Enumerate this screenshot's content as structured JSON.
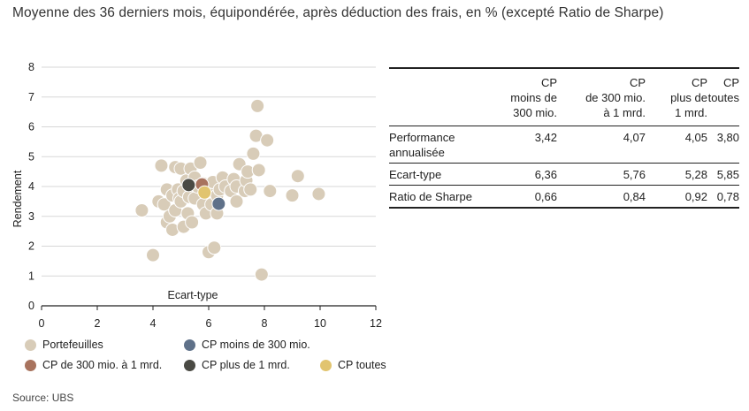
{
  "title": "Moyenne des 36 derniers mois, équipondérée, après déduction des frais, en % (excepté Ratio de Sharpe)",
  "source": "Source: UBS",
  "colors": {
    "portfolios": "#d8ccb8",
    "cp_small": "#5f7189",
    "cp_mid": "#a8735e",
    "cp_large": "#4a4a44",
    "cp_all": "#e1c46f",
    "grid": "#d7d7d7",
    "axis": "#222222"
  },
  "chart_data": {
    "type": "scatter",
    "xlabel": "Ecart-type",
    "ylabel": "Rendement",
    "xlim": [
      0,
      12
    ],
    "ylim": [
      0,
      8
    ],
    "xticks": [
      "0",
      "2",
      "4",
      "6",
      "8",
      "10",
      "12"
    ],
    "yticks": [
      "0",
      "1",
      "2",
      "3",
      "4",
      "5",
      "6",
      "7",
      "8"
    ],
    "grid": "horizontal",
    "legend_position": "bottom",
    "series": [
      {
        "name": "Portefeuilles",
        "color": "#d8ccb8",
        "points": [
          [
            3.6,
            3.2
          ],
          [
            4.0,
            1.7
          ],
          [
            4.2,
            3.5
          ],
          [
            4.3,
            4.7
          ],
          [
            4.4,
            3.4
          ],
          [
            4.5,
            3.9
          ],
          [
            4.5,
            2.8
          ],
          [
            4.6,
            3.0
          ],
          [
            4.7,
            3.7
          ],
          [
            4.7,
            2.55
          ],
          [
            4.8,
            4.65
          ],
          [
            4.8,
            3.2
          ],
          [
            4.9,
            3.9
          ],
          [
            4.95,
            3.6
          ],
          [
            5.0,
            4.6
          ],
          [
            5.0,
            3.5
          ],
          [
            5.1,
            2.65
          ],
          [
            5.1,
            3.85
          ],
          [
            5.2,
            4.2
          ],
          [
            5.25,
            3.1
          ],
          [
            5.3,
            3.65
          ],
          [
            5.35,
            4.6
          ],
          [
            5.4,
            2.8
          ],
          [
            5.5,
            4.3
          ],
          [
            5.5,
            3.6
          ],
          [
            5.6,
            4.0
          ],
          [
            5.7,
            4.8
          ],
          [
            5.8,
            3.4
          ],
          [
            5.8,
            4.1
          ],
          [
            5.9,
            3.1
          ],
          [
            6.0,
            1.8
          ],
          [
            6.0,
            3.9
          ],
          [
            6.1,
            3.4
          ],
          [
            6.15,
            4.15
          ],
          [
            6.2,
            1.95
          ],
          [
            6.3,
            3.7
          ],
          [
            6.3,
            3.1
          ],
          [
            6.4,
            3.9
          ],
          [
            6.5,
            4.3
          ],
          [
            6.6,
            4.0
          ],
          [
            6.8,
            3.85
          ],
          [
            6.9,
            4.25
          ],
          [
            7.0,
            3.5
          ],
          [
            7.0,
            4.0
          ],
          [
            7.1,
            4.75
          ],
          [
            7.3,
            3.85
          ],
          [
            7.35,
            4.2
          ],
          [
            7.4,
            4.5
          ],
          [
            7.5,
            3.9
          ],
          [
            7.6,
            5.1
          ],
          [
            7.7,
            5.7
          ],
          [
            7.75,
            6.7
          ],
          [
            7.8,
            4.55
          ],
          [
            7.9,
            1.05
          ],
          [
            8.1,
            5.55
          ],
          [
            8.2,
            3.85
          ],
          [
            9.0,
            3.7
          ],
          [
            9.2,
            4.35
          ],
          [
            9.95,
            3.75
          ]
        ]
      },
      {
        "name": "CP moins de 300 mio.",
        "color": "#5f7189",
        "points": [
          [
            6.36,
            3.42
          ]
        ]
      },
      {
        "name": "CP de 300 mio. à 1 mrd.",
        "color": "#a8735e",
        "points": [
          [
            5.76,
            4.07
          ]
        ]
      },
      {
        "name": "CP plus de 1 mrd.",
        "color": "#4a4a44",
        "points": [
          [
            5.28,
            4.05
          ]
        ]
      },
      {
        "name": "CP toutes",
        "color": "#e1c46f",
        "points": [
          [
            5.85,
            3.8
          ]
        ]
      }
    ]
  },
  "legend": {
    "items": [
      {
        "label": "Portefeuilles",
        "color": "#d8ccb8"
      },
      {
        "label": "CP moins de 300 mio.",
        "color": "#5f7189"
      },
      {
        "label": "CP de 300 mio. à 1 mrd.",
        "color": "#a8735e"
      },
      {
        "label": "CP plus de 1 mrd.",
        "color": "#4a4a44"
      },
      {
        "label": "CP toutes",
        "color": "#e1c46f"
      }
    ]
  },
  "table": {
    "columns": [
      "",
      "CP\nmoins de\n300 mio.",
      "CP\nde 300 mio.\nà 1 mrd.",
      "CP\nplus de\n1 mrd.",
      "CP\ntoutes"
    ],
    "rows": [
      {
        "label": "Performance\nannualisée",
        "values": [
          "3,42",
          "4,07",
          "4,05",
          "3,80"
        ]
      },
      {
        "label": "Ecart-type",
        "values": [
          "6,36",
          "5,76",
          "5,28",
          "5,85"
        ]
      },
      {
        "label": "Ratio de Sharpe",
        "values": [
          "0,66",
          "0,84",
          "0,92",
          "0,78"
        ]
      }
    ]
  }
}
